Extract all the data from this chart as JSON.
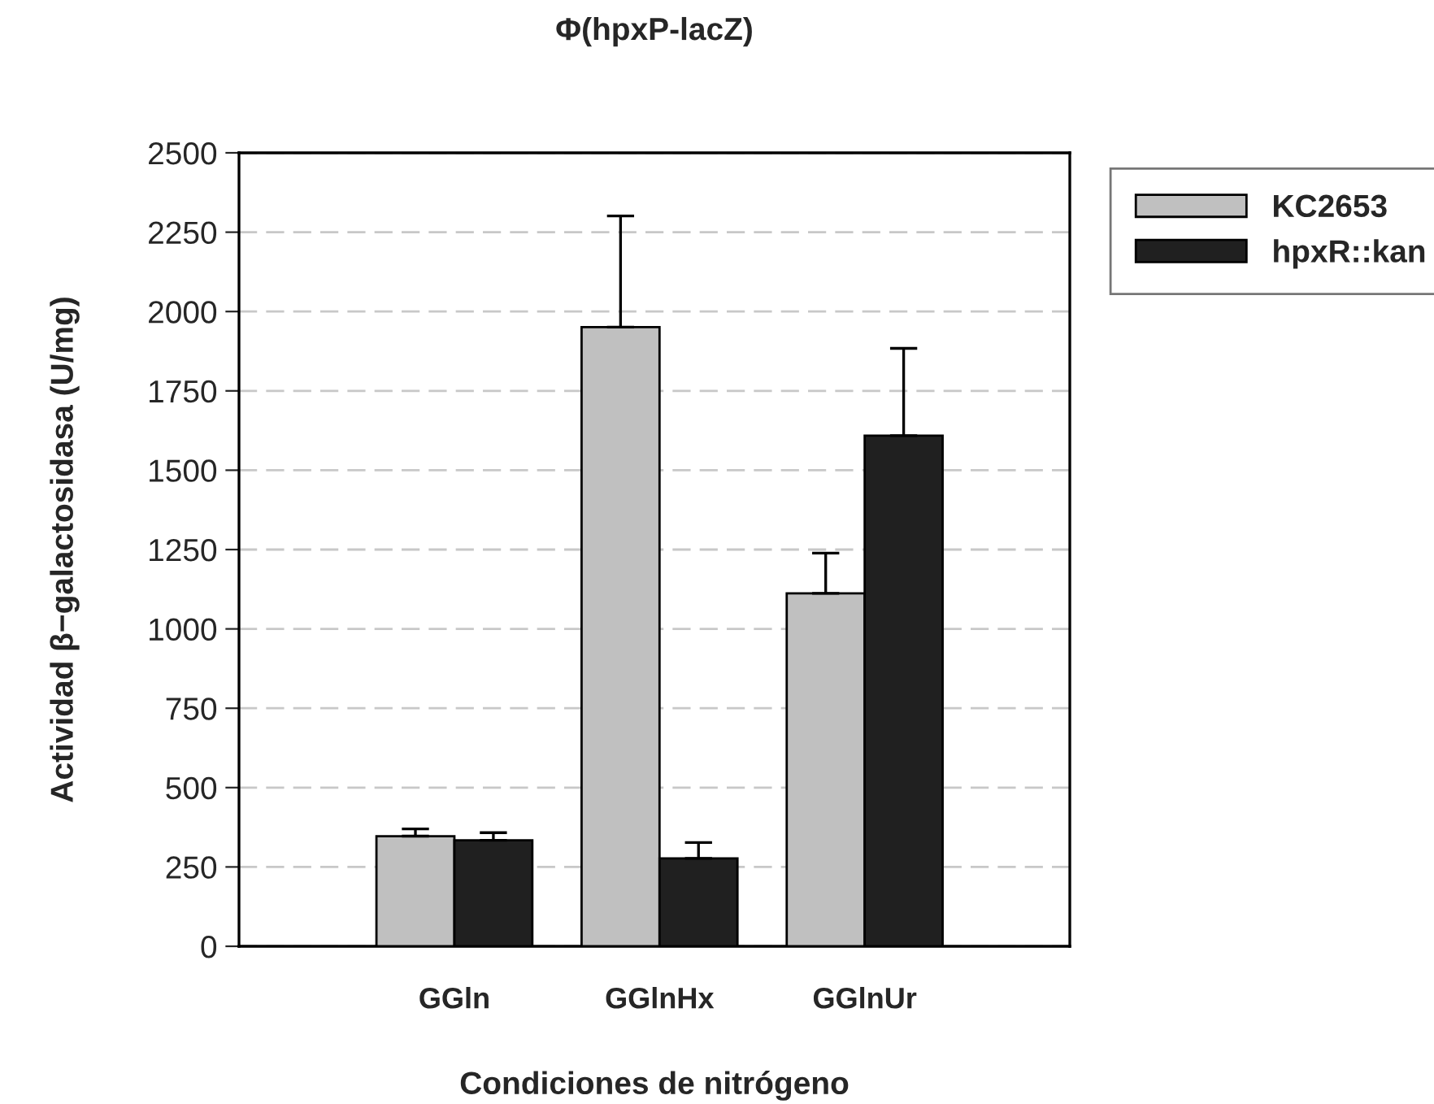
{
  "chart_data": {
    "type": "bar",
    "title": "Φ(hpxP-lacZ)",
    "xlabel": "Condiciones de nitrógeno",
    "ylabel": "Actividad β−galactosidasa (U/mg)",
    "categories": [
      "GGln",
      "GGlnHx",
      "GGlnUr"
    ],
    "series": [
      {
        "name": "KC2653",
        "color": "#c0c0c0",
        "values": [
          347,
          1951,
          1112
        ],
        "errors": [
          23,
          350,
          127
        ]
      },
      {
        "name": "hpxR::kan",
        "color": "#202020",
        "values": [
          334,
          277,
          1609
        ],
        "errors": [
          24,
          50,
          275
        ]
      }
    ],
    "ylim": [
      0,
      2500
    ],
    "yticks": [
      0,
      250,
      500,
      750,
      1000,
      1250,
      1500,
      1750,
      2000,
      2250,
      2500
    ],
    "grid": "y",
    "legend": "top right"
  }
}
